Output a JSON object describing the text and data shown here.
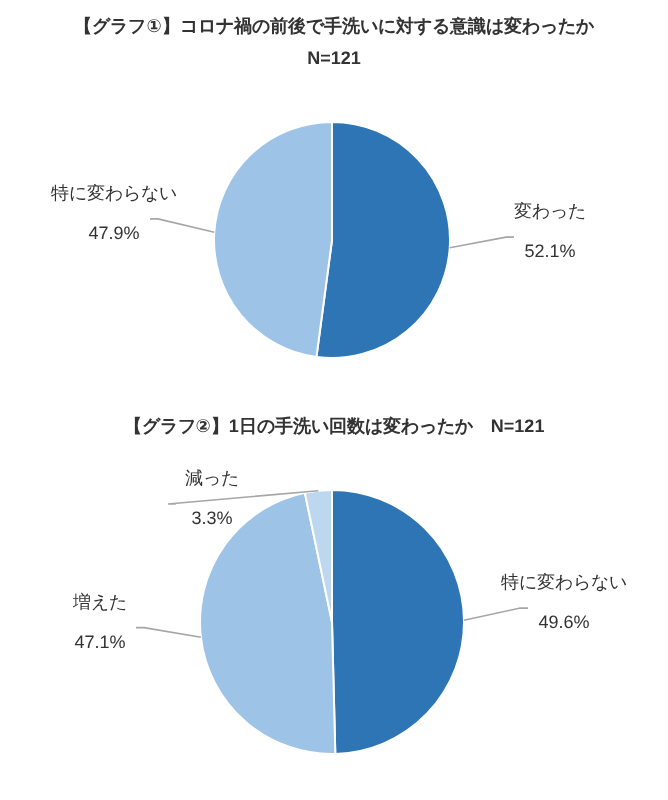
{
  "chart_data": [
    {
      "type": "pie",
      "title": "【グラフ①】コロナ禍の前後で手洗いに対する意識は変わったか",
      "subtitle": "N=121",
      "categories": [
        "変わった",
        "特に変わらない"
      ],
      "values": [
        52.1,
        47.9
      ],
      "colors": [
        "#2e75b6",
        "#9dc3e6"
      ],
      "value_labels": [
        "52.1%",
        "47.9%"
      ]
    },
    {
      "type": "pie",
      "title": "【グラフ②】1日の手洗い回数は変わったか　N=121",
      "categories": [
        "特に変わらない",
        "増えた",
        "減った"
      ],
      "values": [
        49.6,
        47.1,
        3.3
      ],
      "colors": [
        "#2e75b6",
        "#9dc3e6",
        "#bdd7ee"
      ],
      "value_labels": [
        "49.6%",
        "47.1%",
        "3.3%"
      ]
    }
  ]
}
